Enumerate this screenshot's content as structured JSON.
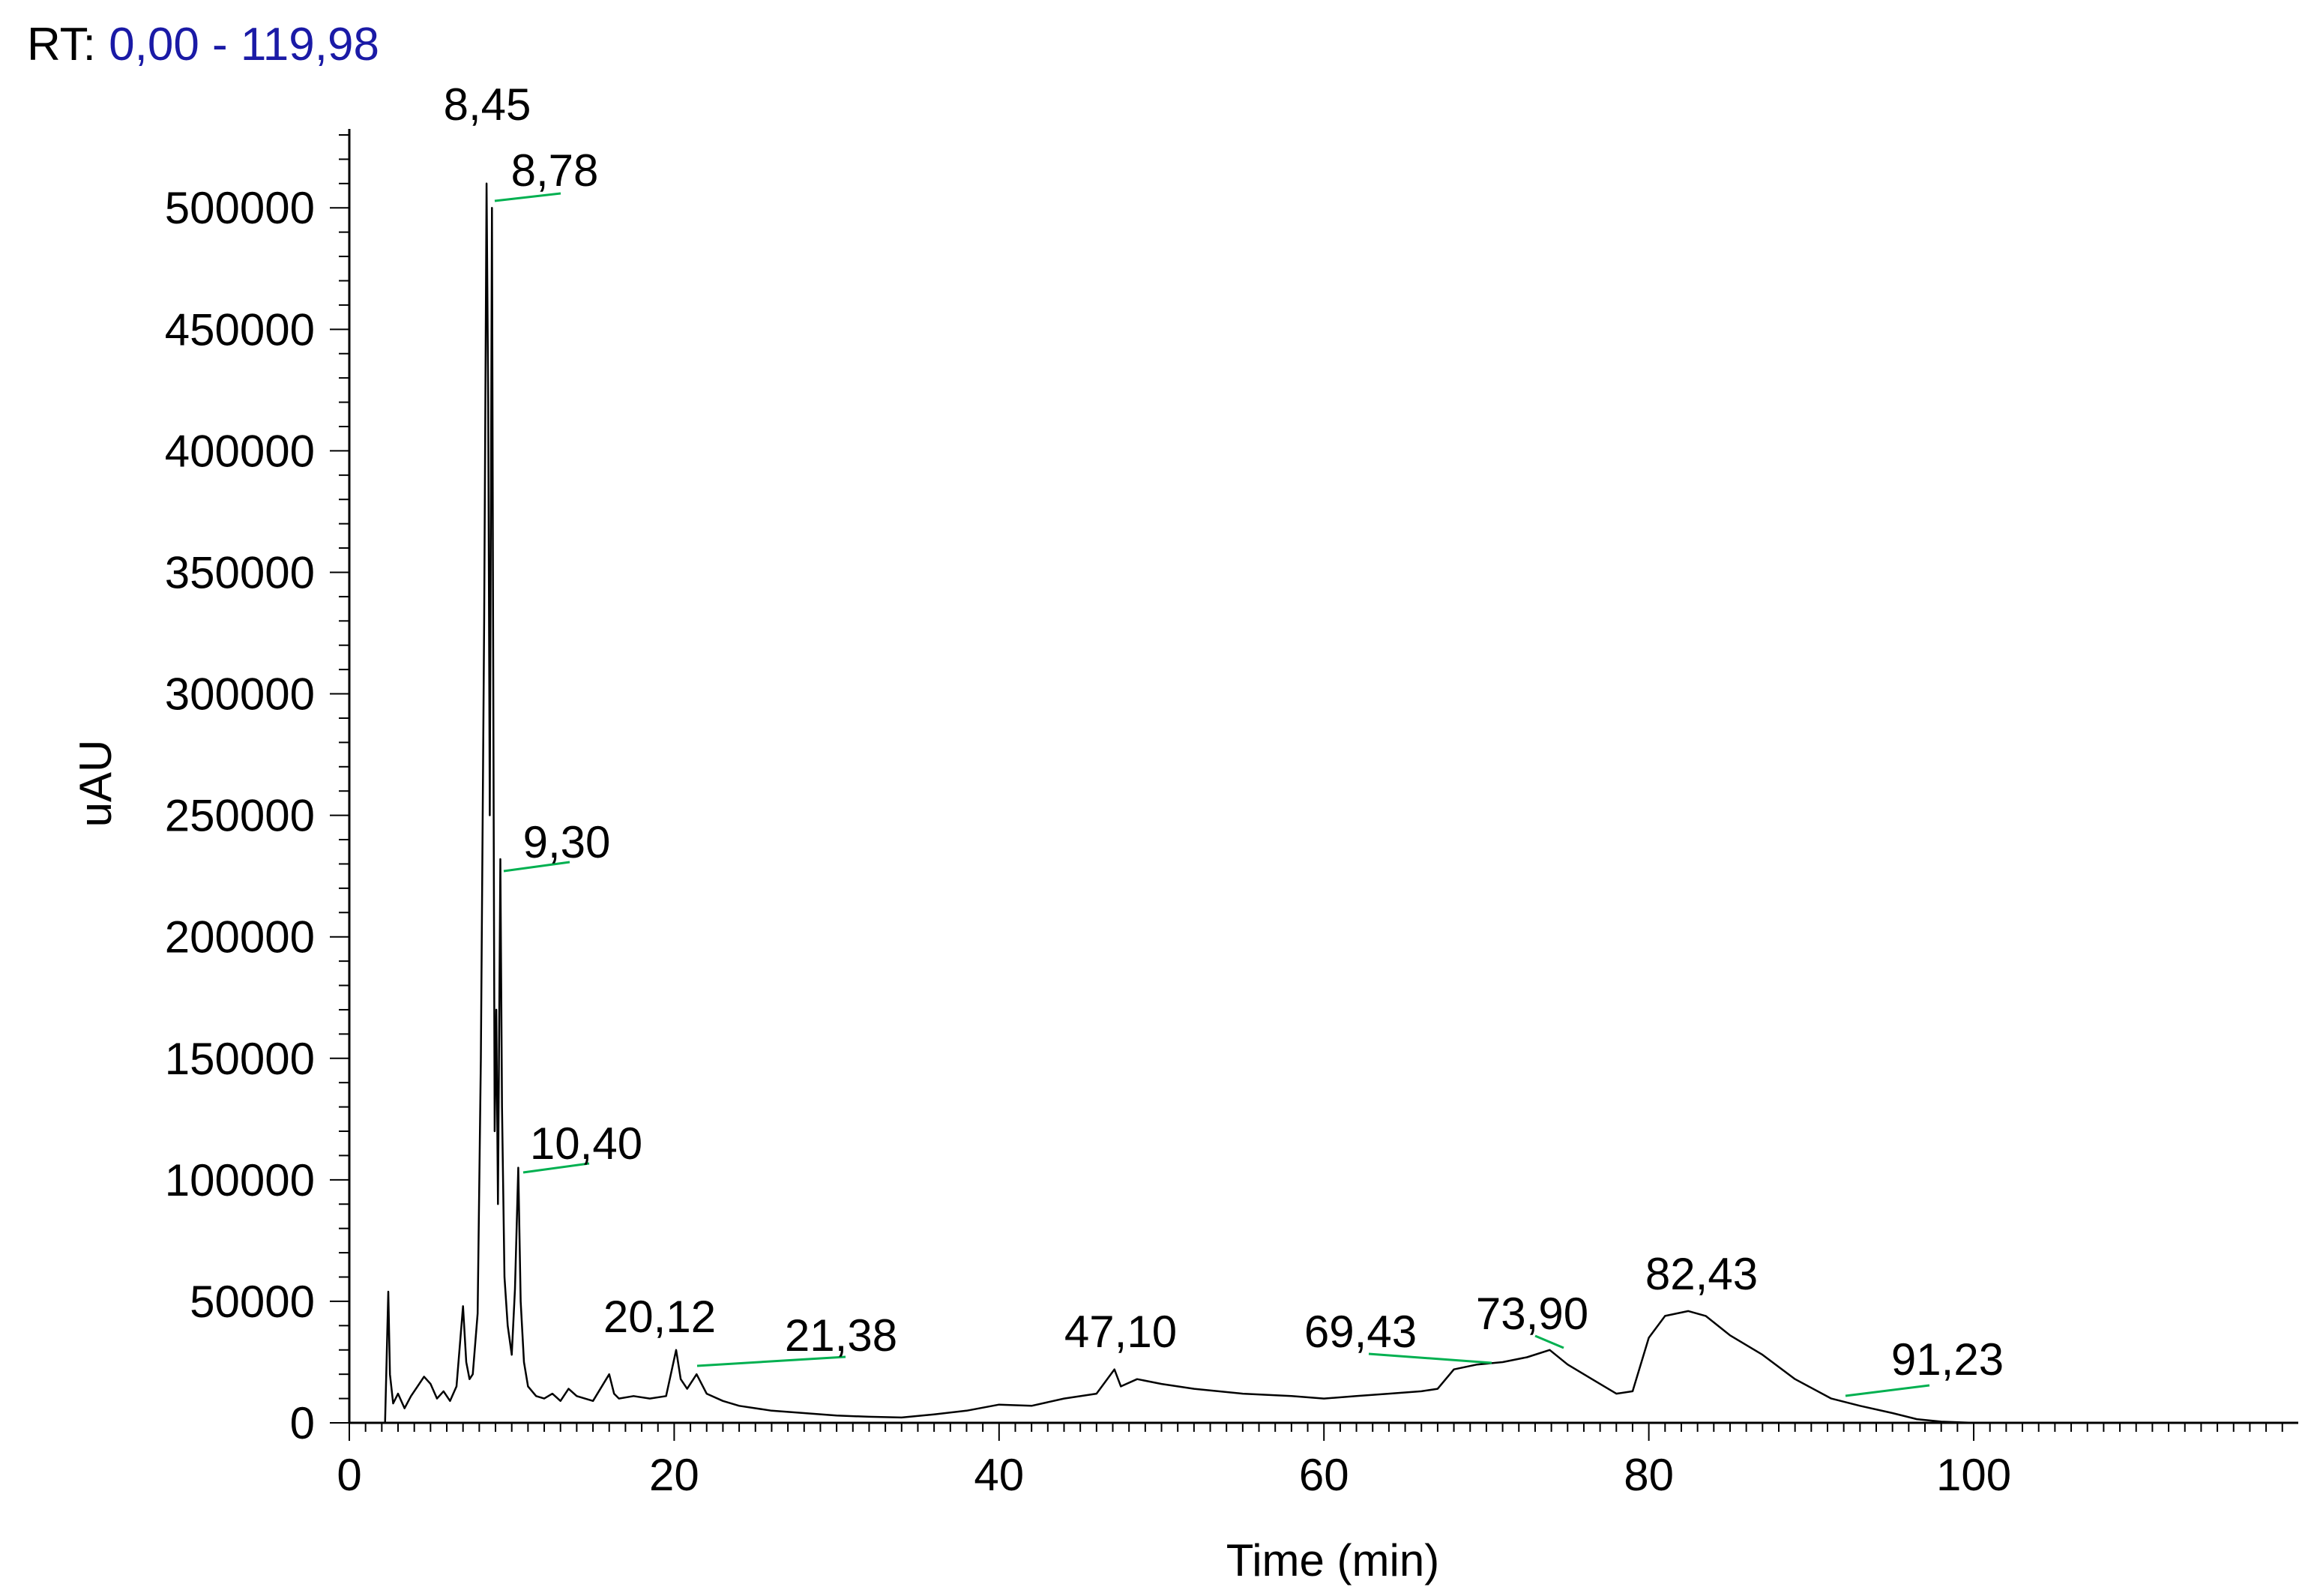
{
  "header": {
    "label": "RT:",
    "range": "0,00 - 119,98"
  },
  "colors": {
    "trace": "#000000",
    "peak_marker": "#00b050",
    "header_range": "#1a1aa6"
  },
  "chart_data": {
    "type": "line",
    "xlabel": "Time (min)",
    "ylabel": "uAU",
    "xlim": [
      0,
      119.98
    ],
    "ylim": [
      0,
      530000
    ],
    "grid": false,
    "x_ticks": [
      0,
      20,
      40,
      60,
      80,
      100
    ],
    "x_tick_labels": [
      "0",
      "20",
      "40",
      "60",
      "80",
      "100"
    ],
    "y_ticks": [
      0,
      50000,
      100000,
      150000,
      200000,
      250000,
      300000,
      350000,
      400000,
      450000,
      500000
    ],
    "y_tick_labels": [
      "0",
      "50000",
      "100000",
      "150000",
      "200000",
      "250000",
      "300000",
      "350000",
      "400000",
      "450000",
      "500000"
    ],
    "series": [
      {
        "x": [
          0,
          2.2,
          2.4,
          2.5,
          2.7,
          3.0,
          3.4,
          3.8,
          4.2,
          4.6,
          5.0,
          5.4,
          5.8,
          6.2,
          6.6,
          7.0,
          7.2,
          7.4,
          7.6,
          7.9,
          8.1,
          8.3,
          8.45,
          8.55,
          8.65,
          8.78,
          8.85,
          8.95,
          9.05,
          9.15,
          9.3,
          9.4,
          9.55,
          9.75,
          10.0,
          10.2,
          10.4,
          10.55,
          10.75,
          11.0,
          11.5,
          12.0,
          12.5,
          13.0,
          13.5,
          14.0,
          15.0,
          16.0,
          16.3,
          16.6,
          17.5,
          18.5,
          19.5,
          20.12,
          20.4,
          20.8,
          21.38,
          22.0,
          23.0,
          24.0,
          26.0,
          28.0,
          30.0,
          32.0,
          34.0,
          36.0,
          38.0,
          40.0,
          42.0,
          44.0,
          46.0,
          47.1,
          47.5,
          48.5,
          50.0,
          52.0,
          55.0,
          58.0,
          60.0,
          62.0,
          64.0,
          66.0,
          67.0,
          68.0,
          69.43,
          71.0,
          72.5,
          73.9,
          75.0,
          76.5,
          78.0,
          79.0,
          80.0,
          81.0,
          82.43,
          83.5,
          85.0,
          87.0,
          89.0,
          91.23,
          93.0,
          95.0,
          96.5,
          98.0,
          100.0,
          105.0,
          110.0,
          119.98
        ],
        "y": [
          0,
          0,
          54000,
          20000,
          8000,
          12000,
          6000,
          11000,
          15000,
          19000,
          16000,
          10000,
          13000,
          9000,
          15000,
          48000,
          25000,
          18000,
          20000,
          45000,
          150000,
          330000,
          510000,
          420000,
          250000,
          500000,
          330000,
          120000,
          170000,
          90000,
          232000,
          130000,
          60000,
          40000,
          28000,
          55000,
          105000,
          50000,
          25000,
          15000,
          11000,
          10000,
          12000,
          9000,
          14000,
          11000,
          9000,
          20000,
          12000,
          10000,
          11000,
          10000,
          11000,
          30000,
          18000,
          14000,
          20000,
          12000,
          9000,
          7000,
          5000,
          4000,
          3000,
          2500,
          2200,
          3500,
          5000,
          7500,
          7000,
          10000,
          12000,
          22000,
          15000,
          18000,
          16000,
          14000,
          12000,
          11000,
          10000,
          11000,
          12000,
          13000,
          14000,
          22000,
          24000,
          25000,
          27000,
          30000,
          24000,
          18000,
          12000,
          13000,
          35000,
          44000,
          46000,
          44000,
          36000,
          28000,
          18000,
          10000,
          7000,
          4000,
          1500,
          500,
          0,
          0,
          0,
          0
        ]
      }
    ],
    "peak_labels": [
      {
        "x": 8.45,
        "label": "8,45"
      },
      {
        "x": 8.78,
        "label": "8,78"
      },
      {
        "x": 9.3,
        "label": "9,30"
      },
      {
        "x": 10.4,
        "label": "10,40"
      },
      {
        "x": 20.12,
        "label": "20,12"
      },
      {
        "x": 21.38,
        "label": "21,38"
      },
      {
        "x": 47.1,
        "label": "47,10"
      },
      {
        "x": 69.43,
        "label": "69,43"
      },
      {
        "x": 73.9,
        "label": "73,90"
      },
      {
        "x": 82.43,
        "label": "82,43"
      },
      {
        "x": 91.23,
        "label": "91,23"
      }
    ]
  }
}
